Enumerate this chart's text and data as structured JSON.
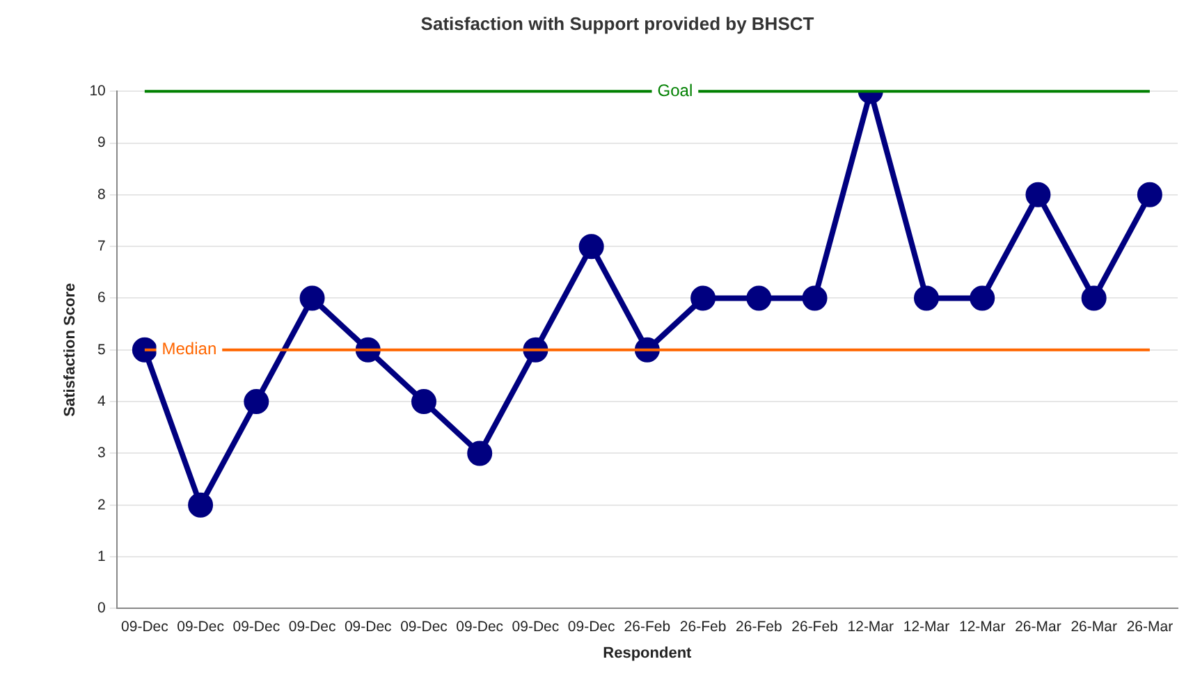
{
  "chart_data": {
    "type": "line",
    "title": "Satisfaction with Support provided by BHSCT",
    "xlabel": "Respondent",
    "ylabel": "Satisfaction Score",
    "categories": [
      "09-Dec",
      "09-Dec",
      "09-Dec",
      "09-Dec",
      "09-Dec",
      "09-Dec",
      "09-Dec",
      "09-Dec",
      "09-Dec",
      "26-Feb",
      "26-Feb",
      "26-Feb",
      "26-Feb",
      "12-Mar",
      "12-Mar",
      "12-Mar",
      "26-Mar",
      "26-Mar",
      "26-Mar"
    ],
    "series": [
      {
        "color": "#000080",
        "values": [
          5,
          2,
          4,
          6,
          5,
          4,
          3,
          5,
          7,
          5,
          6,
          6,
          6,
          10,
          6,
          6,
          8,
          6,
          8
        ]
      }
    ],
    "ylim": [
      0,
      10
    ],
    "yticks": [
      0,
      1,
      2,
      3,
      4,
      5,
      6,
      7,
      8,
      9,
      10
    ],
    "grid": "y",
    "legend": false,
    "marker": "circle",
    "line_style": "solid",
    "ref_lines": [
      {
        "axis": "y",
        "value": 10,
        "label": "Goal",
        "color": "#008000"
      },
      {
        "axis": "y",
        "value": 5,
        "label": "Median",
        "color": "#ff6600"
      }
    ]
  }
}
